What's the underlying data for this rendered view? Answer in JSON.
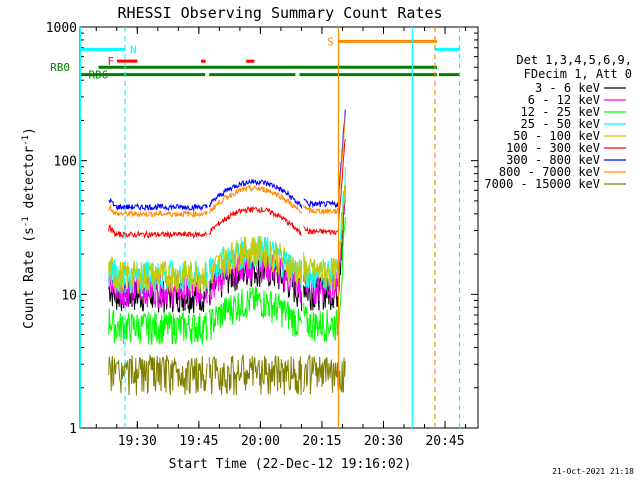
{
  "chart_data": {
    "type": "line",
    "title": "RHESSI Observing Summary Count Rates",
    "xlabel": "Start Time (22-Dec-12 19:16:02)",
    "ylabel_main": "Count Rate (s",
    "ylabel_sup": "-1",
    "ylabel_mid": " detector",
    "ylabel_end": ")",
    "yscale": "log",
    "ylim": [
      1,
      1000
    ],
    "xlim_minutes_since_19_16_02": [
      0,
      97
    ],
    "x_ticks": [
      "19:30",
      "19:45",
      "20:00",
      "20:15",
      "20:30",
      "20:45"
    ],
    "y_ticks": [
      "1",
      "10",
      "100",
      "1000"
    ],
    "info_lines": [
      "Det 1,3,4,5,6,9,",
      "FDecim 1, Att 0"
    ],
    "legend_position": "right",
    "footer": "21-Oct-2021 21:18",
    "flags": [
      {
        "label": "N",
        "color": "#00ffff"
      },
      {
        "label": "F",
        "color": "#ff0000"
      },
      {
        "label": "S",
        "color": "#ff8c00"
      },
      {
        "label": "RB0",
        "color": "#008000"
      },
      {
        "label": "RD6",
        "color": "#008000"
      }
    ],
    "series": [
      {
        "name": "3 - 6 keV",
        "color": "#000000",
        "base": 10
      },
      {
        "name": "6 - 12 keV",
        "color": "#ff00ff",
        "base": 11
      },
      {
        "name": "12 - 25 keV",
        "color": "#00ff00",
        "base": 5.8
      },
      {
        "name": "25 - 50 keV",
        "color": "#00ffff",
        "base": 14
      },
      {
        "name": "50 - 100 keV",
        "color": "#c8c800",
        "base": 14
      },
      {
        "name": "100 - 300 keV",
        "color": "#ff0000",
        "base": 28
      },
      {
        "name": "300 - 800 keV",
        "color": "#0000ff",
        "base": 45
      },
      {
        "name": "800 - 7000 keV",
        "color": "#ff8c00",
        "base": 40
      },
      {
        "name": "7000 - 15000 keV",
        "color": "#808000",
        "base": 2.5
      }
    ]
  }
}
